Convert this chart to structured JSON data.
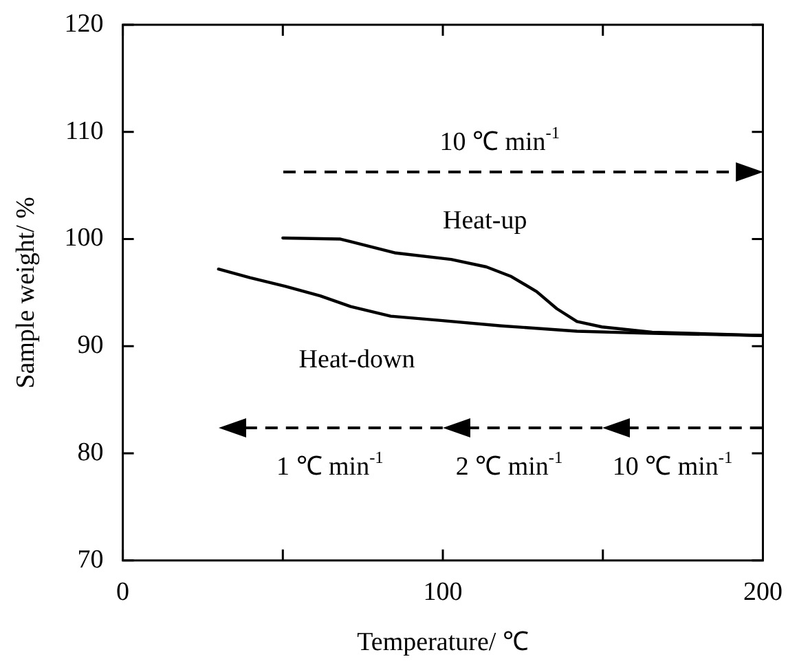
{
  "chart_data": {
    "type": "line",
    "xlabel": "Temperature/ ℃",
    "ylabel": "Sample weight/ %",
    "xlim": [
      0,
      200
    ],
    "xticks": [
      0,
      {
        "value": 50,
        "label": null
      },
      100,
      {
        "value": 150,
        "label": null
      },
      200
    ],
    "ylim": [
      70,
      120
    ],
    "yticks": [
      70,
      80,
      90,
      100,
      110,
      120
    ],
    "legend": false,
    "marker": "none",
    "line_style": "solid",
    "series": [
      {
        "name": "Heat-up",
        "color": "#000000",
        "x": [
          50,
          68,
          85.3,
          102.6,
          113.6,
          121.4,
          129.3,
          135.6,
          141.9,
          149.7,
          165.4,
          200
        ],
        "values": [
          100.1,
          100,
          98.7,
          98.1,
          97.4,
          96.5,
          95.1,
          93.5,
          92.3,
          91.8,
          91.3,
          91.0
        ]
      },
      {
        "name": "Heat-down",
        "color": "#000000",
        "x": [
          29.9,
          39.7,
          50.7,
          61.7,
          71.2,
          83.7,
          99.4,
          118.3,
          141.9,
          165.4,
          200
        ],
        "values": [
          97.2,
          96.4,
          95.6,
          94.7,
          93.7,
          92.8,
          92.4,
          91.9,
          91.4,
          91.2,
          91.0
        ]
      }
    ],
    "annotations": [
      "10 ℃ min$^{-1}$",
      "1 ℃ min$^{-1}$",
      "2 ℃ min$^{-1}$",
      "10 ℃ min$^{-1}$"
    ]
  }
}
